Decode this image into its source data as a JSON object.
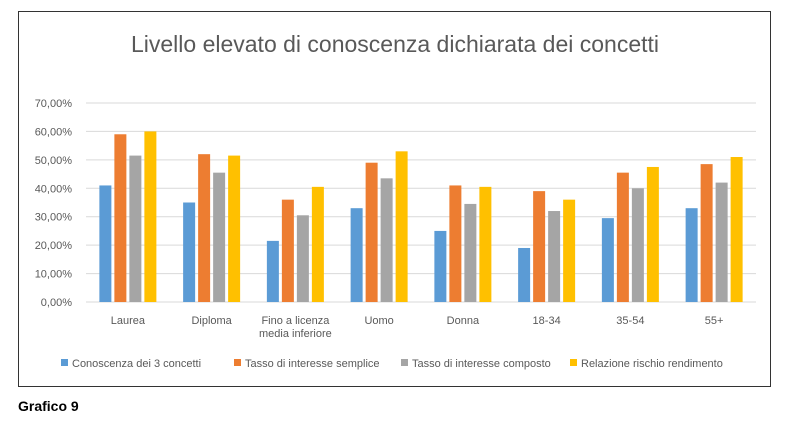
{
  "caption": "Grafico 9",
  "colors": {
    "axis": "#d9d9d9",
    "text": "#595959",
    "title": "#595959"
  },
  "chart_data": {
    "type": "bar",
    "title": "Livello elevato di conoscenza dichiarata dei concetti",
    "xlabel": "",
    "ylabel": "",
    "ylim": [
      0,
      70
    ],
    "yticks": [
      "0,00%",
      "10,00%",
      "20,00%",
      "30,00%",
      "40,00%",
      "50,00%",
      "60,00%",
      "70,00%"
    ],
    "grid": true,
    "legend_position": "bottom",
    "categories": [
      [
        "Laurea"
      ],
      [
        "Diploma"
      ],
      [
        "Fino a licenza",
        "media inferiore"
      ],
      [
        "Uomo"
      ],
      [
        "Donna"
      ],
      [
        "18-34"
      ],
      [
        "35-54"
      ],
      [
        "55+"
      ]
    ],
    "series": [
      {
        "name": "Conoscenza dei 3 concetti",
        "color": "#5b9bd5",
        "values": [
          41,
          35,
          21.5,
          33,
          25,
          19,
          29.5,
          33
        ]
      },
      {
        "name": "Tasso di interesse semplice",
        "color": "#ed7d31",
        "values": [
          59,
          52,
          36,
          49,
          41,
          39,
          45.5,
          48.5
        ]
      },
      {
        "name": "Tasso di interesse composto",
        "color": "#a5a5a5",
        "values": [
          51.5,
          45.5,
          30.5,
          43.5,
          34.5,
          32,
          40,
          42
        ]
      },
      {
        "name": "Relazione rischio rendimento",
        "color": "#ffc000",
        "values": [
          60,
          51.5,
          40.5,
          53,
          40.5,
          36,
          47.5,
          51
        ]
      }
    ]
  }
}
